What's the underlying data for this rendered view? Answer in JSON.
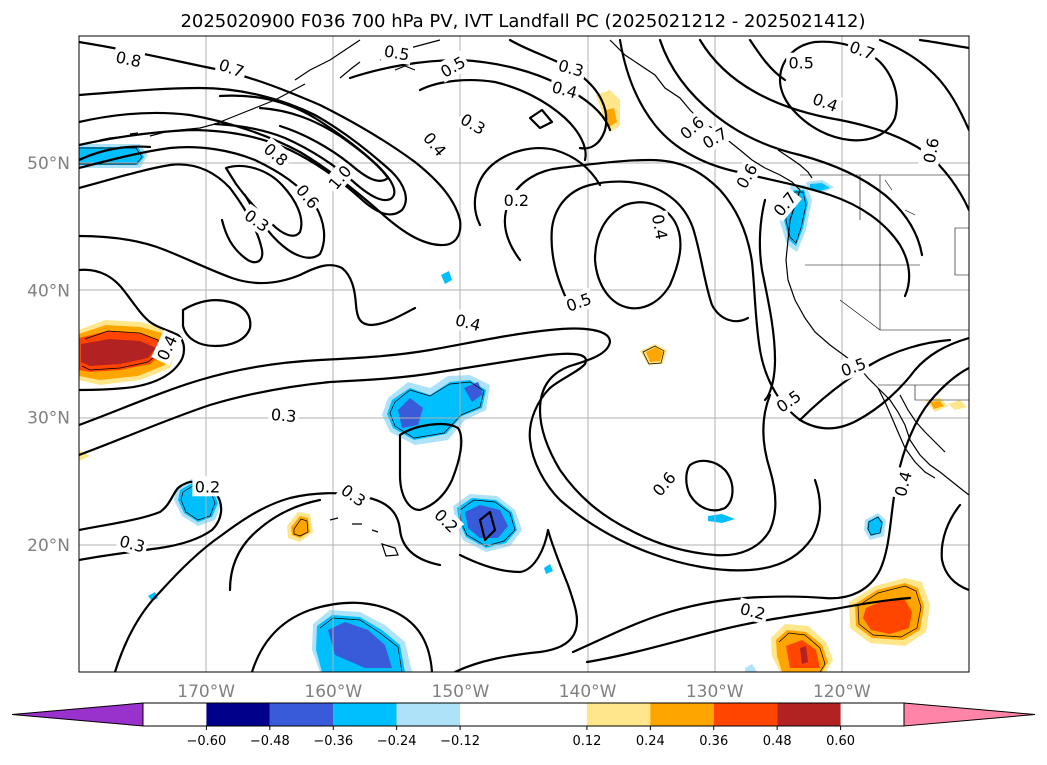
{
  "chart_data": {
    "type": "contour-map",
    "title": "2025020900 F036 700 hPa PV, IVT Landfall PC (2025021212 - 2025021412)",
    "projection": "lat-lon",
    "lon_range": [
      -180,
      -110
    ],
    "lat_range": [
      10,
      60
    ],
    "x_ticks": [
      {
        "lon": -170,
        "label": "170°W"
      },
      {
        "lon": -160,
        "label": "160°W"
      },
      {
        "lon": -150,
        "label": "150°W"
      },
      {
        "lon": -140,
        "label": "140°W"
      },
      {
        "lon": -130,
        "label": "130°W"
      },
      {
        "lon": -120,
        "label": "120°W"
      }
    ],
    "y_ticks": [
      {
        "lat": 20,
        "label": "20°N"
      },
      {
        "lat": 30,
        "label": "30°N"
      },
      {
        "lat": 40,
        "label": "40°N"
      },
      {
        "lat": 50,
        "label": "50°N"
      }
    ],
    "grid": true,
    "colorbar": {
      "orientation": "horizontal",
      "extend": "both",
      "levels": [
        -0.72,
        -0.6,
        -0.48,
        -0.36,
        -0.24,
        -0.12,
        0.12,
        0.24,
        0.36,
        0.48,
        0.6,
        0.72
      ],
      "colors": [
        "#9932cc",
        "#00008b",
        "#3a5bd9",
        "#00bfff",
        "#aee2f9",
        "#ffffff",
        "#ffe68a",
        "#ffa500",
        "#ff4500",
        "#b22222",
        "#ff85a8"
      ],
      "tick_labels": [
        "−0.60",
        "−0.48",
        "−0.36",
        "−0.24",
        "−0.12",
        "0.12",
        "0.24",
        "0.36",
        "0.48",
        "0.60"
      ],
      "tick_values": [
        -0.6,
        -0.48,
        -0.36,
        -0.24,
        -0.12,
        0.12,
        0.24,
        0.36,
        0.48,
        0.6
      ]
    },
    "pv_contour_labels": [
      {
        "text": "0.8",
        "lon": -176.1,
        "lat": 58.2,
        "rot": 12
      },
      {
        "text": "0.7",
        "lon": -168.0,
        "lat": 57.5,
        "rot": 20
      },
      {
        "text": "0.5",
        "lon": -155.0,
        "lat": 58.7,
        "rot": 10
      },
      {
        "text": "0.5",
        "lon": -150.6,
        "lat": 57.6,
        "rot": -30
      },
      {
        "text": "0.3",
        "lon": -141.3,
        "lat": 57.5,
        "rot": 15
      },
      {
        "text": "0.4",
        "lon": -141.8,
        "lat": 55.8,
        "rot": 15
      },
      {
        "text": "0.3",
        "lon": -149.0,
        "lat": 53.1,
        "rot": 30
      },
      {
        "text": "0.4",
        "lon": -152.0,
        "lat": 51.5,
        "rot": 50
      },
      {
        "text": "0.8",
        "lon": -164.5,
        "lat": 50.7,
        "rot": 40
      },
      {
        "text": "1.0",
        "lon": -159.5,
        "lat": 48.9,
        "rot": -50
      },
      {
        "text": "0.6",
        "lon": -162.0,
        "lat": 47.4,
        "rot": 50
      },
      {
        "text": "0.3",
        "lon": -166.0,
        "lat": 45.5,
        "rot": 35
      },
      {
        "text": "0.2",
        "lon": -145.6,
        "lat": 47.1,
        "rot": 0
      },
      {
        "text": "0.4",
        "lon": -134.3,
        "lat": 45.0,
        "rot": 80
      },
      {
        "text": "0.5",
        "lon": -140.7,
        "lat": 39.1,
        "rot": -20
      },
      {
        "text": "0.4",
        "lon": -149.4,
        "lat": 37.5,
        "rot": 15
      },
      {
        "text": "0.4",
        "lon": -173.1,
        "lat": 35.5,
        "rot": -65
      },
      {
        "text": "0.3",
        "lon": -163.9,
        "lat": 30.2,
        "rot": 5
      },
      {
        "text": "0.2",
        "lon": -169.9,
        "lat": 24.6,
        "rot": 0
      },
      {
        "text": "0.3",
        "lon": -158.4,
        "lat": 23.9,
        "rot": 35
      },
      {
        "text": "0.2",
        "lon": -151.1,
        "lat": 21.9,
        "rot": 45
      },
      {
        "text": "0.3",
        "lon": -175.8,
        "lat": 20.1,
        "rot": 15
      },
      {
        "text": "0.6",
        "lon": -134.0,
        "lat": 24.8,
        "rot": -50
      },
      {
        "text": "0.5",
        "lon": -124.2,
        "lat": 31.3,
        "rot": -35
      },
      {
        "text": "0.2",
        "lon": -127.0,
        "lat": 14.8,
        "rot": 15
      },
      {
        "text": "0.7",
        "lon": -118.4,
        "lat": 58.9,
        "rot": 20
      },
      {
        "text": "0.5",
        "lon": -123.2,
        "lat": 57.9,
        "rot": 0
      },
      {
        "text": "0.4",
        "lon": -121.3,
        "lat": 54.8,
        "rot": 20
      },
      {
        "text": "0.6",
        "lon": -113.0,
        "lat": 51.0,
        "rot": -80
      },
      {
        "text": "0.6",
        "lon": -131.8,
        "lat": 52.8,
        "rot": -40
      },
      {
        "text": "0.7",
        "lon": -130.0,
        "lat": 52.0,
        "rot": -30
      },
      {
        "text": "0.6",
        "lon": -127.5,
        "lat": 49.0,
        "rot": -60
      },
      {
        "text": "0.7",
        "lon": -124.5,
        "lat": 46.8,
        "rot": -50
      },
      {
        "text": "0.5",
        "lon": -119.1,
        "lat": 34.0,
        "rot": -20
      },
      {
        "text": "0.4",
        "lon": -115.2,
        "lat": 24.8,
        "rot": -75
      }
    ]
  }
}
